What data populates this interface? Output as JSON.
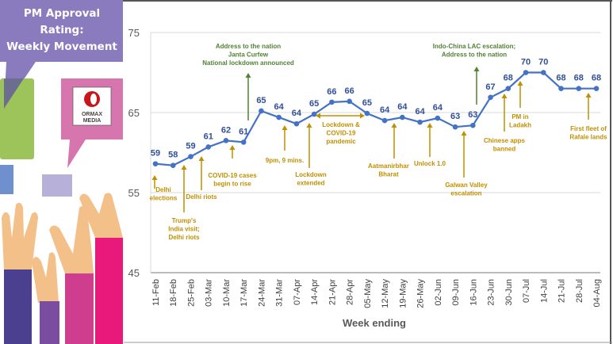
{
  "panel": {
    "title_lines": [
      "PM Approval",
      "Rating:",
      "Weekly Movement"
    ],
    "logo_text": [
      "ORMAX",
      "MEDIA"
    ]
  },
  "colors": {
    "line": "#4472c4",
    "data_label": "#2f4f9a",
    "event": "#bf9000",
    "major_event": "#538135",
    "title_panel": "#8a7bbf"
  },
  "chart_data": {
    "type": "line",
    "xlabel": "Week ending",
    "ylabel": "",
    "ylim": [
      45,
      75
    ],
    "yticks": [
      "45",
      "55",
      "65",
      "75"
    ],
    "grid": "horizontal",
    "categories": [
      "11-Feb",
      "18-Feb",
      "25-Feb",
      "03-Mar",
      "10-Mar",
      "17-Mar",
      "24-Mar",
      "31-Mar",
      "07-Apr",
      "14-Apr",
      "21-Apr",
      "28-Apr",
      "05-May",
      "12-May",
      "19-May",
      "26-May",
      "02-Jun",
      "09-Jun",
      "16-Jun",
      "23-Jun",
      "30-Jun",
      "07-Jul",
      "14-Jul",
      "21-Jul",
      "28-Jul",
      "04-Aug"
    ],
    "values": [
      58.6,
      58.4,
      59.5,
      60.7,
      61.5,
      61.3,
      65.2,
      64.4,
      63.6,
      64.8,
      66.3,
      66.4,
      64.9,
      64.0,
      64.4,
      63.8,
      64.3,
      63.2,
      63.4,
      66.9,
      68.0,
      70.0,
      70.0,
      68.0,
      68.0,
      68.0
    ],
    "data_labels": [
      "59",
      "58",
      "59",
      "61",
      "62",
      "61",
      "65",
      "64",
      "64",
      "65",
      "66",
      "66",
      "65",
      "64",
      "64",
      "64",
      "64",
      "63",
      "63",
      "67",
      "68",
      "70",
      "70",
      "68",
      "68",
      "68"
    ],
    "annotations": [
      {
        "lines": [
          "Delhi",
          "elections"
        ],
        "kind": "event"
      },
      {
        "lines": [
          "Trump's",
          "India visit;",
          "Delhi riots"
        ],
        "kind": "event"
      },
      {
        "lines": [
          "Delhi riots"
        ],
        "kind": "event"
      },
      {
        "lines": [
          "COVID-19 cases",
          "begin to rise"
        ],
        "kind": "event"
      },
      {
        "lines": [
          "Address to the nation",
          "Janta Curfew",
          "National lockdown announced"
        ],
        "kind": "major_event"
      },
      {
        "lines": [
          "9pm, 9 mins."
        ],
        "kind": "event"
      },
      {
        "lines": [
          "Lockdown",
          "extended"
        ],
        "kind": "event"
      },
      {
        "lines": [
          "Lockdown &",
          "COVID-19",
          "pandemic"
        ],
        "kind": "event"
      },
      {
        "lines": [
          "Aatmanirbhar",
          "Bharat"
        ],
        "kind": "event"
      },
      {
        "lines": [
          "Unlock 1.0"
        ],
        "kind": "event"
      },
      {
        "lines": [
          "Galwan Valley",
          "escalation"
        ],
        "kind": "event"
      },
      {
        "lines": [
          "Indo-China LAC escalation;",
          "Address to the nation"
        ],
        "kind": "major_event"
      },
      {
        "lines": [
          "Chinese apps",
          "banned"
        ],
        "kind": "event"
      },
      {
        "lines": [
          "PM in",
          "Ladakh"
        ],
        "kind": "event"
      },
      {
        "lines": [
          "First fleet of",
          "Rafale lands"
        ],
        "kind": "event"
      }
    ]
  }
}
